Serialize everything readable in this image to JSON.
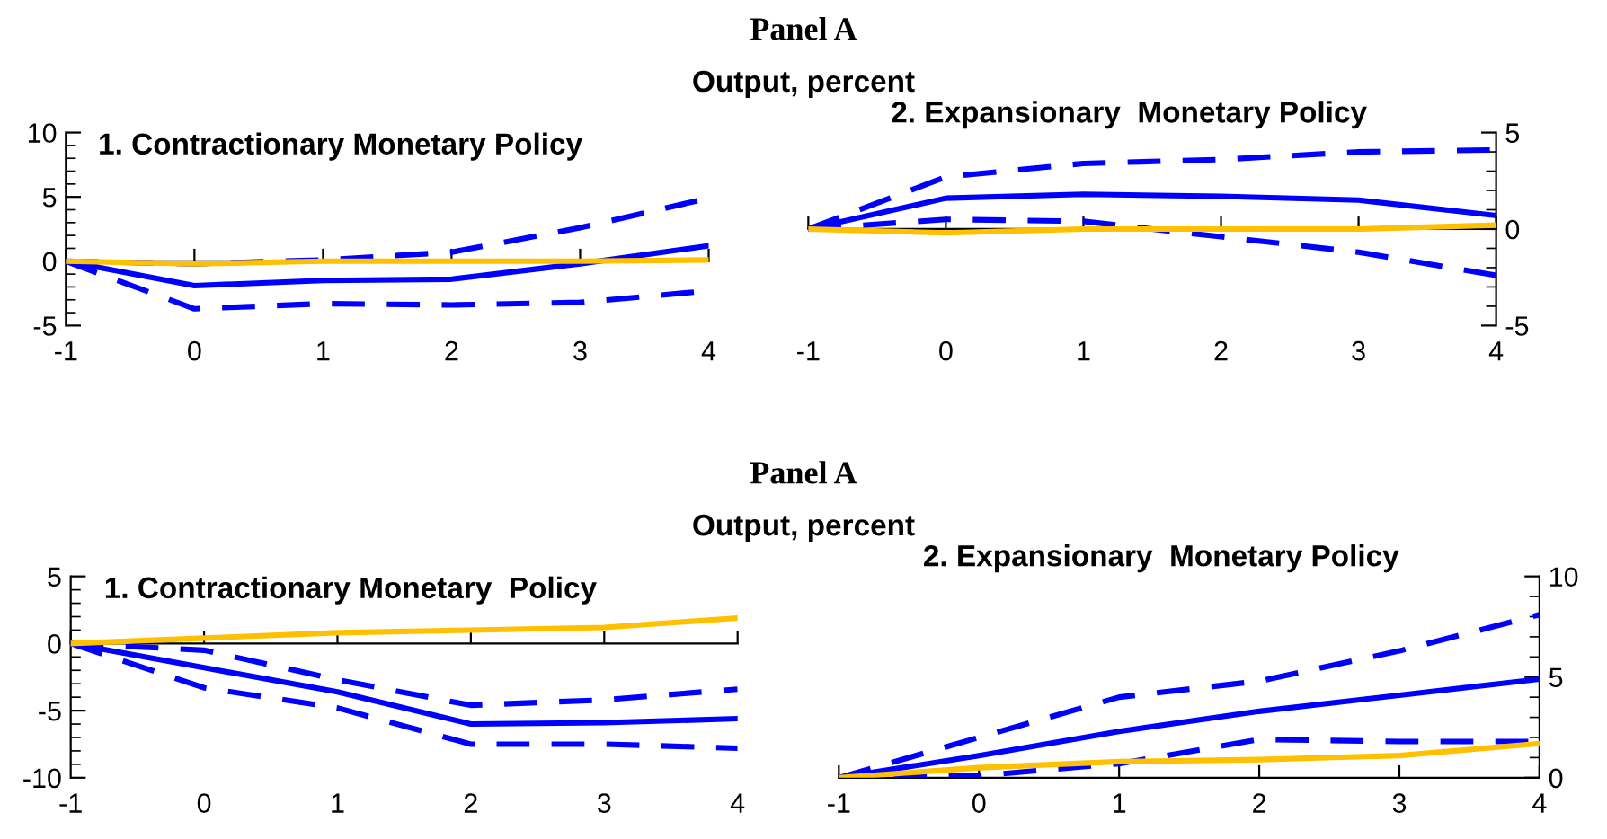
{
  "chart_data": [
    {
      "type": "line",
      "title": "1. Contractionary Monetary Policy",
      "annotations": [
        "Panel A",
        "Output, percent"
      ],
      "x": [
        -1,
        0,
        1,
        2,
        3,
        4
      ],
      "xlim": [
        -1,
        4
      ],
      "xticks": [
        -1,
        0,
        1,
        2,
        3,
        4
      ],
      "ylim": [
        -5,
        10
      ],
      "yticks": [
        -5,
        0,
        5,
        10
      ],
      "series": [
        {
          "color": "#0000ff",
          "line_style": "solid",
          "values": [
            0,
            -1.9,
            -1.5,
            -1.4,
            -0.2,
            1.2
          ]
        },
        {
          "color": "#0000ff",
          "line_style": "dashed",
          "values": [
            0,
            -0.2,
            0.1,
            0.7,
            2.6,
            4.9
          ]
        },
        {
          "color": "#0000ff",
          "line_style": "dashed",
          "values": [
            0,
            -3.7,
            -3.3,
            -3.4,
            -3.2,
            -2.3
          ]
        },
        {
          "color": "#ffc000",
          "line_style": "solid",
          "values": [
            0,
            -0.2,
            0,
            0,
            0,
            0.1
          ]
        }
      ]
    },
    {
      "type": "line",
      "title": "2. Expansionary  Monetary Policy",
      "x": [
        -1,
        0,
        1,
        2,
        3,
        4
      ],
      "xlim": [
        -1,
        4
      ],
      "xticks": [
        -1,
        0,
        1,
        2,
        3,
        4
      ],
      "y2lim": [
        -5,
        5
      ],
      "y2ticks": [
        -5,
        0,
        5
      ],
      "series": [
        {
          "color": "#0000ff",
          "line_style": "solid",
          "axis": "y2",
          "values": [
            0,
            1.6,
            1.8,
            1.7,
            1.5,
            0.7
          ]
        },
        {
          "color": "#0000ff",
          "line_style": "dashed",
          "axis": "y2",
          "values": [
            0,
            2.7,
            3.4,
            3.6,
            4.0,
            4.1
          ]
        },
        {
          "color": "#0000ff",
          "line_style": "dashed",
          "axis": "y2",
          "values": [
            0,
            0.5,
            0.4,
            -0.4,
            -1.2,
            -2.4
          ]
        },
        {
          "color": "#ffc000",
          "line_style": "solid",
          "axis": "y2",
          "values": [
            0,
            -0.2,
            0,
            0,
            0,
            0.2
          ]
        }
      ]
    },
    {
      "type": "line",
      "title": "1. Contractionary Monetary  Policy",
      "annotations": [
        "Panel A",
        "Output, percent"
      ],
      "x": [
        -1,
        0,
        1,
        2,
        3,
        4
      ],
      "xlim": [
        -1,
        4
      ],
      "xticks": [
        -1,
        0,
        1,
        2,
        3,
        4
      ],
      "ylim": [
        -10,
        5
      ],
      "yticks": [
        -10,
        -5,
        0,
        5
      ],
      "series": [
        {
          "color": "#0000ff",
          "line_style": "solid",
          "values": [
            0,
            -1.8,
            -3.6,
            -6.0,
            -5.9,
            -5.6
          ]
        },
        {
          "color": "#0000ff",
          "line_style": "dashed",
          "values": [
            0,
            -0.5,
            -2.7,
            -4.6,
            -4.2,
            -3.4
          ]
        },
        {
          "color": "#0000ff",
          "line_style": "dashed",
          "values": [
            0,
            -3.3,
            -4.8,
            -7.5,
            -7.5,
            -7.8
          ]
        },
        {
          "color": "#ffc000",
          "line_style": "solid",
          "values": [
            0,
            0.4,
            0.8,
            1.0,
            1.2,
            1.9
          ]
        }
      ]
    },
    {
      "type": "line",
      "title": "2. Expansionary  Monetary Policy",
      "x": [
        -1,
        0,
        1,
        2,
        3,
        4
      ],
      "xlim": [
        -1,
        4
      ],
      "xticks": [
        -1,
        0,
        1,
        2,
        3,
        4
      ],
      "y2lim": [
        0,
        10
      ],
      "y2ticks": [
        0,
        5,
        10
      ],
      "series": [
        {
          "color": "#0000ff",
          "line_style": "solid",
          "axis": "y2",
          "values": [
            0,
            1.1,
            2.3,
            3.3,
            4.1,
            4.9
          ]
        },
        {
          "color": "#0000ff",
          "line_style": "dashed",
          "axis": "y2",
          "values": [
            0,
            2.0,
            4.0,
            4.8,
            6.3,
            8.1
          ]
        },
        {
          "color": "#0000ff",
          "line_style": "dashed",
          "axis": "y2",
          "values": [
            0,
            0.1,
            0.7,
            1.9,
            1.8,
            1.8
          ]
        },
        {
          "color": "#ffc000",
          "line_style": "solid",
          "axis": "y2",
          "values": [
            0,
            0.5,
            0.8,
            0.9,
            1.1,
            1.7
          ]
        }
      ]
    }
  ]
}
